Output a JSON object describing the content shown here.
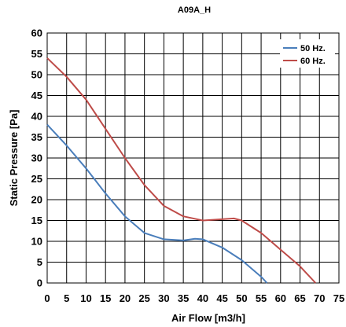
{
  "chart_data": {
    "type": "line",
    "title": "A09A_H",
    "xlabel": "Air Flow [m3/h]",
    "ylabel": "Static Pressure [Pa]",
    "xlim": [
      0,
      75
    ],
    "ylim": [
      0,
      60
    ],
    "xticks": [
      "0",
      "5",
      "10",
      "15",
      "20",
      "25",
      "30",
      "35",
      "40",
      "45",
      "50",
      "55",
      "60",
      "65",
      "70",
      "75"
    ],
    "yticks": [
      "0",
      "5",
      "10",
      "15",
      "20",
      "25",
      "30",
      "35",
      "40",
      "45",
      "50",
      "55",
      "60"
    ],
    "grid": true,
    "legend_position": "top-right",
    "series": [
      {
        "name": "50 Hz.",
        "color": "#4a7ebb",
        "x": [
          0,
          5,
          10,
          15,
          20,
          25,
          30,
          35,
          38,
          40,
          45,
          50,
          55,
          56.5
        ],
        "y": [
          38,
          33,
          27.5,
          21.5,
          16,
          12,
          10.5,
          10.2,
          10.6,
          10.5,
          8.5,
          5.5,
          1.5,
          0
        ]
      },
      {
        "name": "60 Hz.",
        "color": "#be4b48",
        "x": [
          0,
          5,
          10,
          15,
          20,
          25,
          30,
          35,
          40,
          45,
          48,
          50,
          55,
          60,
          65,
          69
        ],
        "y": [
          54,
          49.5,
          44,
          37,
          30,
          23.5,
          18.5,
          16,
          15,
          15.3,
          15.5,
          15,
          12,
          8,
          4,
          0
        ]
      }
    ]
  }
}
